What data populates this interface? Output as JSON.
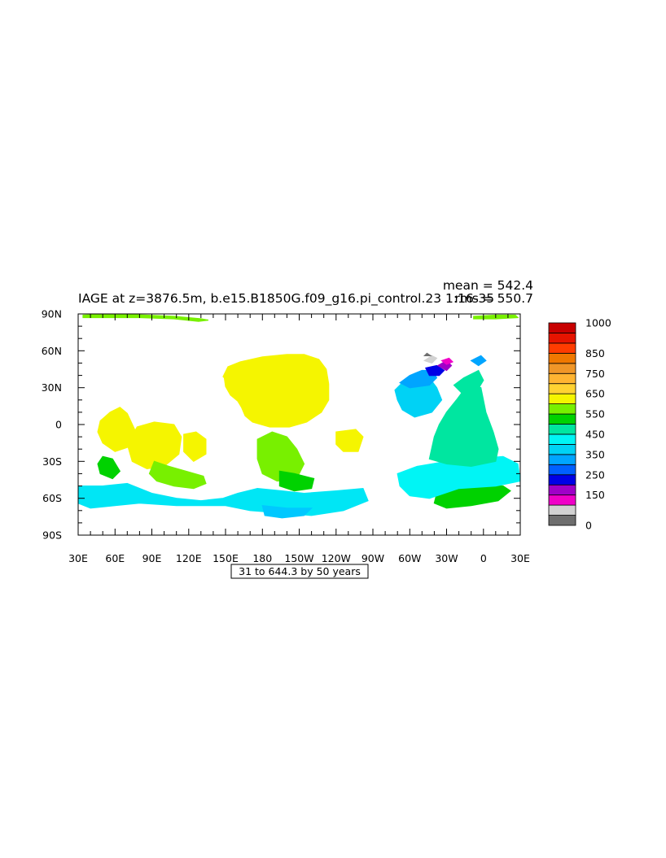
{
  "chart_data": {
    "type": "heatmap",
    "title": "IAGE at z=3876.5m, b.e15.B1850G.f09_g16.pi_control.23 1:16-35",
    "stats": {
      "mean_label": "mean = 542.4",
      "rms_label": "rms = 550.7"
    },
    "contour_info": "31 to 644.3 by 50 years",
    "x_axis": {
      "range_deg_east": [
        30,
        390
      ],
      "ticks": [
        {
          "lon": 30,
          "label": "30E"
        },
        {
          "lon": 60,
          "label": "60E"
        },
        {
          "lon": 90,
          "label": "90E"
        },
        {
          "lon": 120,
          "label": "120E"
        },
        {
          "lon": 150,
          "label": "150E"
        },
        {
          "lon": 180,
          "label": "180"
        },
        {
          "lon": 210,
          "label": "150W"
        },
        {
          "lon": 240,
          "label": "120W"
        },
        {
          "lon": 270,
          "label": "90W"
        },
        {
          "lon": 300,
          "label": "60W"
        },
        {
          "lon": 330,
          "label": "30W"
        },
        {
          "lon": 360,
          "label": "0"
        },
        {
          "lon": 390,
          "label": "30E"
        }
      ]
    },
    "y_axis": {
      "range_deg": [
        -90,
        90
      ],
      "ticks": [
        {
          "lat": 90,
          "label": "90N"
        },
        {
          "lat": 60,
          "label": "60N"
        },
        {
          "lat": 30,
          "label": "30N"
        },
        {
          "lat": 0,
          "label": "0"
        },
        {
          "lat": -30,
          "label": "30S"
        },
        {
          "lat": -60,
          "label": "60S"
        },
        {
          "lat": -90,
          "label": "90S"
        }
      ]
    },
    "colorbar": {
      "bins_bottom_to_top": [
        {
          "color": "#6e6e6e"
        },
        {
          "color": "#d2d2d2"
        },
        {
          "color": "#f000c8"
        },
        {
          "color": "#a000c8"
        },
        {
          "color": "#0000e6"
        },
        {
          "color": "#0060ff"
        },
        {
          "color": "#00a5ff"
        },
        {
          "color": "#00d2f5"
        },
        {
          "color": "#00f5f5"
        },
        {
          "color": "#00e6a0"
        },
        {
          "color": "#00d200"
        },
        {
          "color": "#78f000"
        },
        {
          "color": "#f5f500"
        },
        {
          "color": "#ffd232"
        },
        {
          "color": "#ffb432"
        },
        {
          "color": "#f09628"
        },
        {
          "color": "#f07800"
        },
        {
          "color": "#ff3c00"
        },
        {
          "color": "#e61400"
        },
        {
          "color": "#c80000"
        }
      ],
      "labels": [
        {
          "value": 0,
          "text": "0"
        },
        {
          "value": 150,
          "text": "150"
        },
        {
          "value": 250,
          "text": "250"
        },
        {
          "value": 350,
          "text": "350"
        },
        {
          "value": 450,
          "text": "450"
        },
        {
          "value": 550,
          "text": "550"
        },
        {
          "value": 650,
          "text": "650"
        },
        {
          "value": 750,
          "text": "750"
        },
        {
          "value": 850,
          "text": "850"
        },
        {
          "value": 1000,
          "text": "1000"
        }
      ]
    },
    "regions": [
      {
        "name": "arctic-strip-west",
        "color": "#78f000",
        "pts": [
          [
            34,
            89
          ],
          [
            58,
            90
          ],
          [
            85,
            89
          ],
          [
            108,
            88
          ],
          [
            130,
            86
          ],
          [
            136,
            85
          ],
          [
            128,
            84
          ],
          [
            108,
            86
          ],
          [
            80,
            87
          ],
          [
            50,
            87
          ],
          [
            34,
            87
          ]
        ]
      },
      {
        "name": "arctic-strip-east",
        "color": "#78f000",
        "pts": [
          [
            352,
            88
          ],
          [
            370,
            89
          ],
          [
            386,
            89
          ],
          [
            388,
            87
          ],
          [
            370,
            86
          ],
          [
            352,
            86
          ]
        ]
      },
      {
        "name": "n-pacific",
        "color": "#f5f500",
        "pts": [
          [
            148,
            39
          ],
          [
            152,
            47
          ],
          [
            162,
            51
          ],
          [
            180,
            55
          ],
          [
            200,
            57
          ],
          [
            214,
            57
          ],
          [
            226,
            53
          ],
          [
            232,
            45
          ],
          [
            234,
            33
          ],
          [
            234,
            20
          ],
          [
            228,
            10
          ],
          [
            216,
            2
          ],
          [
            202,
            -2
          ],
          [
            186,
            -2
          ],
          [
            172,
            2
          ],
          [
            166,
            7
          ],
          [
            163,
            14
          ],
          [
            160,
            19
          ],
          [
            154,
            24
          ],
          [
            150,
            31
          ],
          [
            149,
            38
          ]
        ]
      },
      {
        "name": "n-indian",
        "color": "#f5f500",
        "pts": [
          [
            48,
            3
          ],
          [
            56,
            10
          ],
          [
            64,
            14
          ],
          [
            70,
            9
          ],
          [
            76,
            -4
          ],
          [
            72,
            -18
          ],
          [
            60,
            -22
          ],
          [
            50,
            -15
          ],
          [
            46,
            -6
          ]
        ]
      },
      {
        "name": "indian-central",
        "color": "#f5f500",
        "pts": [
          [
            78,
            -2
          ],
          [
            92,
            2
          ],
          [
            108,
            0
          ],
          [
            114,
            -10
          ],
          [
            112,
            -24
          ],
          [
            100,
            -34
          ],
          [
            86,
            -36
          ],
          [
            74,
            -30
          ],
          [
            70,
            -16
          ]
        ]
      },
      {
        "name": "w-pacific",
        "color": "#f5f500",
        "pts": [
          [
            116,
            -8
          ],
          [
            126,
            -6
          ],
          [
            134,
            -12
          ],
          [
            134,
            -24
          ],
          [
            124,
            -30
          ],
          [
            116,
            -22
          ]
        ]
      },
      {
        "name": "e-pacific",
        "color": "#f5f500",
        "pts": [
          [
            240,
            -6
          ],
          [
            256,
            -4
          ],
          [
            262,
            -10
          ],
          [
            258,
            -22
          ],
          [
            246,
            -22
          ],
          [
            240,
            -16
          ]
        ]
      },
      {
        "name": "s-pacific-green",
        "color": "#78f000",
        "pts": [
          [
            176,
            -12
          ],
          [
            188,
            -6
          ],
          [
            200,
            -10
          ],
          [
            208,
            -20
          ],
          [
            214,
            -32
          ],
          [
            208,
            -44
          ],
          [
            192,
            -46
          ],
          [
            180,
            -40
          ],
          [
            176,
            -28
          ]
        ]
      },
      {
        "name": "s-pacific-green-east",
        "color": "#00d200",
        "pts": [
          [
            194,
            -38
          ],
          [
            206,
            -40
          ],
          [
            214,
            -42
          ],
          [
            222,
            -44
          ],
          [
            220,
            -52
          ],
          [
            206,
            -54
          ],
          [
            194,
            -50
          ]
        ]
      },
      {
        "name": "s-indian-green",
        "color": "#78f000",
        "pts": [
          [
            92,
            -30
          ],
          [
            104,
            -34
          ],
          [
            118,
            -38
          ],
          [
            132,
            -42
          ],
          [
            134,
            -48
          ],
          [
            124,
            -52
          ],
          [
            108,
            -50
          ],
          [
            94,
            -46
          ],
          [
            88,
            -40
          ]
        ]
      },
      {
        "name": "sw-indian-green",
        "color": "#00d200",
        "pts": [
          [
            50,
            -26
          ],
          [
            58,
            -28
          ],
          [
            64,
            -38
          ],
          [
            58,
            -44
          ],
          [
            48,
            -40
          ],
          [
            46,
            -32
          ]
        ]
      },
      {
        "name": "s-atlantic-green",
        "color": "#00d200",
        "pts": [
          [
            322,
            -56
          ],
          [
            340,
            -52
          ],
          [
            360,
            -48
          ],
          [
            376,
            -50
          ],
          [
            382,
            -54
          ],
          [
            372,
            -62
          ],
          [
            350,
            -66
          ],
          [
            330,
            -68
          ],
          [
            320,
            -64
          ]
        ]
      },
      {
        "name": "southern-ocean-indian",
        "color": "#00e6f5",
        "pts": [
          [
            30,
            -50
          ],
          [
            50,
            -50
          ],
          [
            70,
            -48
          ],
          [
            90,
            -56
          ],
          [
            110,
            -60
          ],
          [
            130,
            -62
          ],
          [
            148,
            -60
          ],
          [
            160,
            -56
          ],
          [
            176,
            -52
          ],
          [
            196,
            -54
          ],
          [
            214,
            -56
          ],
          [
            240,
            -54
          ],
          [
            262,
            -52
          ],
          [
            266,
            -62
          ],
          [
            246,
            -70
          ],
          [
            220,
            -74
          ],
          [
            196,
            -72
          ],
          [
            170,
            -70
          ],
          [
            150,
            -66
          ],
          [
            130,
            -66
          ],
          [
            110,
            -66
          ],
          [
            80,
            -64
          ],
          [
            60,
            -66
          ],
          [
            40,
            -68
          ],
          [
            30,
            -64
          ]
        ]
      },
      {
        "name": "ross-sea",
        "color": "#00c8ff",
        "pts": [
          [
            180,
            -66
          ],
          [
            200,
            -68
          ],
          [
            220,
            -68
          ],
          [
            214,
            -74
          ],
          [
            196,
            -76
          ],
          [
            182,
            -74
          ]
        ]
      },
      {
        "name": "s-atlantic-cyan",
        "color": "#00f5f5",
        "pts": [
          [
            290,
            -40
          ],
          [
            306,
            -34
          ],
          [
            330,
            -30
          ],
          [
            350,
            -28
          ],
          [
            376,
            -26
          ],
          [
            388,
            -32
          ],
          [
            390,
            -46
          ],
          [
            370,
            -50
          ],
          [
            340,
            -52
          ],
          [
            316,
            -60
          ],
          [
            300,
            -58
          ],
          [
            292,
            -50
          ]
        ]
      },
      {
        "name": "atlantic-equatorial",
        "color": "#00e6a0",
        "pts": [
          [
            316,
            -28
          ],
          [
            320,
            -10
          ],
          [
            324,
            0
          ],
          [
            330,
            10
          ],
          [
            338,
            20
          ],
          [
            344,
            28
          ],
          [
            352,
            32
          ],
          [
            358,
            30
          ],
          [
            362,
            10
          ],
          [
            368,
            -6
          ],
          [
            372,
            -20
          ],
          [
            370,
            -30
          ],
          [
            350,
            -34
          ],
          [
            330,
            -32
          ]
        ]
      },
      {
        "name": "n-atlantic-west",
        "color": "#00d2f5",
        "pts": [
          [
            288,
            28
          ],
          [
            296,
            36
          ],
          [
            306,
            42
          ],
          [
            316,
            38
          ],
          [
            322,
            30
          ],
          [
            326,
            20
          ],
          [
            318,
            10
          ],
          [
            304,
            6
          ],
          [
            294,
            12
          ],
          [
            290,
            20
          ]
        ]
      },
      {
        "name": "n-atlantic-nw",
        "color": "#00a5ff",
        "pts": [
          [
            292,
            34
          ],
          [
            300,
            40
          ],
          [
            310,
            44
          ],
          [
            318,
            44
          ],
          [
            322,
            38
          ],
          [
            316,
            32
          ],
          [
            300,
            30
          ]
        ]
      },
      {
        "name": "labrador-deep",
        "color": "#0000e6",
        "pts": [
          [
            313,
            46
          ],
          [
            322,
            48
          ],
          [
            328,
            44
          ],
          [
            324,
            40
          ],
          [
            316,
            40
          ]
        ]
      },
      {
        "name": "labrador-purple",
        "color": "#a000c8",
        "pts": [
          [
            323,
            48
          ],
          [
            330,
            52
          ],
          [
            334,
            48
          ],
          [
            330,
            44
          ]
        ]
      },
      {
        "name": "labrador-magenta",
        "color": "#f000c8",
        "pts": [
          [
            326,
            52
          ],
          [
            332,
            54
          ],
          [
            335,
            51
          ],
          [
            330,
            49
          ]
        ]
      },
      {
        "name": "greenland-gray",
        "color": "#d2d2d2",
        "pts": [
          [
            312,
            52
          ],
          [
            318,
            56
          ],
          [
            322,
            54
          ],
          [
            318,
            50
          ]
        ]
      },
      {
        "name": "greenland-dark",
        "color": "#6e6e6e",
        "pts": [
          [
            312,
            56
          ],
          [
            314,
            58
          ],
          [
            317,
            56
          ]
        ]
      },
      {
        "name": "norwegian-blue",
        "color": "#00a5ff",
        "pts": [
          [
            350,
            52
          ],
          [
            358,
            56
          ],
          [
            362,
            52
          ],
          [
            356,
            48
          ]
        ]
      },
      {
        "name": "ne-atlantic",
        "color": "#00e6a0",
        "pts": [
          [
            336,
            32
          ],
          [
            344,
            38
          ],
          [
            356,
            44
          ],
          [
            360,
            36
          ],
          [
            354,
            26
          ],
          [
            344,
            24
          ]
        ]
      }
    ]
  }
}
